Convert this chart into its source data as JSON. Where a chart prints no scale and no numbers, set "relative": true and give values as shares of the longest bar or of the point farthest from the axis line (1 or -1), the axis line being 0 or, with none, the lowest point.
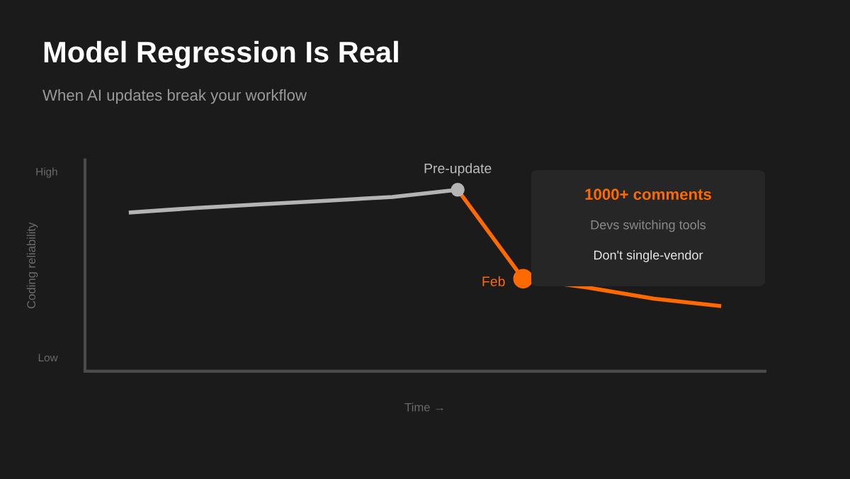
{
  "chart_data": [
    {
      "type": "line",
      "title": "Model Regression Is Real",
      "subtitle": "When AI updates break your workflow",
      "xlabel": "Time →",
      "ylabel": "Coding reliability",
      "relative": true,
      "annotations": [
        "High",
        "Low"
      ],
      "categories": [
        null,
        null,
        null,
        null,
        null,
        null,
        null,
        null,
        null,
        null
      ],
      "series": [
        {
          "name": "Pre-update",
          "color": "#b4b4b4",
          "values": [
            0.875,
            0.9,
            0.92,
            0.94,
            0.96,
            1.0,
            null,
            null,
            null,
            null
          ]
        },
        {
          "name": "Feb",
          "color": "#ff6a00",
          "values": [
            null,
            null,
            null,
            null,
            null,
            1.0,
            0.51,
            0.46,
            0.4,
            0.36
          ]
        }
      ],
      "grid": false
    },
    {
      "type": "other",
      "title": "1000+ comments",
      "annotations": [
        "Devs switching tools",
        "Don't single-vendor"
      ]
    }
  ]
}
